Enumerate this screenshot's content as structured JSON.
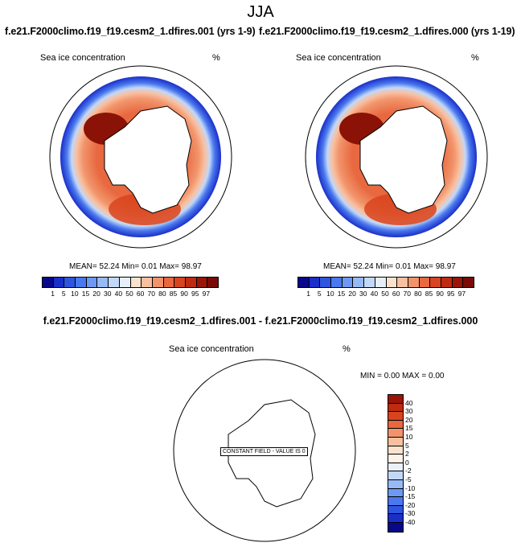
{
  "figure": {
    "title": "JJA",
    "diff_title": "f.e21.F2000climo.f19_f19.cesm2_1.dfires.001 - f.e21.F2000climo.f19_f19.cesm2_1.dfires.000"
  },
  "panels": [
    {
      "case_title": "f.e21.F2000climo.f19_f19.cesm2_1.dfires.001 (yrs 1-9)",
      "variable": "Sea ice concentration",
      "units": "%",
      "stats": "MEAN=  52.24  Min=   0.01  Max=  98.97"
    },
    {
      "case_title": "f.e21.F2000climo.f19_f19.cesm2_1.dfires.000 (yrs 1-19)",
      "variable": "Sea ice concentration",
      "units": "%",
      "stats": "MEAN=  52.24  Min=   0.01  Max=  98.97"
    }
  ],
  "diff_panel": {
    "variable": "Sea ice concentration",
    "units": "%",
    "stats": "MIN =   0.00 MAX =   0.00",
    "constant_label": "CONSTANT FIELD - VALUE IS 0"
  },
  "colorbar": {
    "labels": [
      "1",
      "5",
      "10",
      "15",
      "20",
      "30",
      "40",
      "50",
      "60",
      "70",
      "80",
      "85",
      "90",
      "95",
      "97"
    ],
    "colors": [
      "#08088a",
      "#1a2fc8",
      "#2d55e0",
      "#4a78ee",
      "#6e98f2",
      "#97b9f5",
      "#c2d8f8",
      "#e6eef8",
      "#fbe2cf",
      "#f9c0a0",
      "#f2946b",
      "#e8683f",
      "#d8441f",
      "#be2b10",
      "#9a1508",
      "#7a0a05"
    ]
  },
  "diff_colorbar": {
    "labels": [
      "40",
      "30",
      "20",
      "15",
      "10",
      "5",
      "2",
      "0",
      "-2",
      "-5",
      "-10",
      "-15",
      "-20",
      "-30",
      "-40"
    ],
    "colors": [
      "#9a1508",
      "#be2b10",
      "#d8441f",
      "#e8683f",
      "#f2946b",
      "#f9c0a0",
      "#fbe2cf",
      "#fdf2ea",
      "#eaf1fb",
      "#c2d8f8",
      "#97b9f5",
      "#6e98f2",
      "#4a78ee",
      "#2d55e0",
      "#1a2fc8",
      "#08088a"
    ]
  }
}
